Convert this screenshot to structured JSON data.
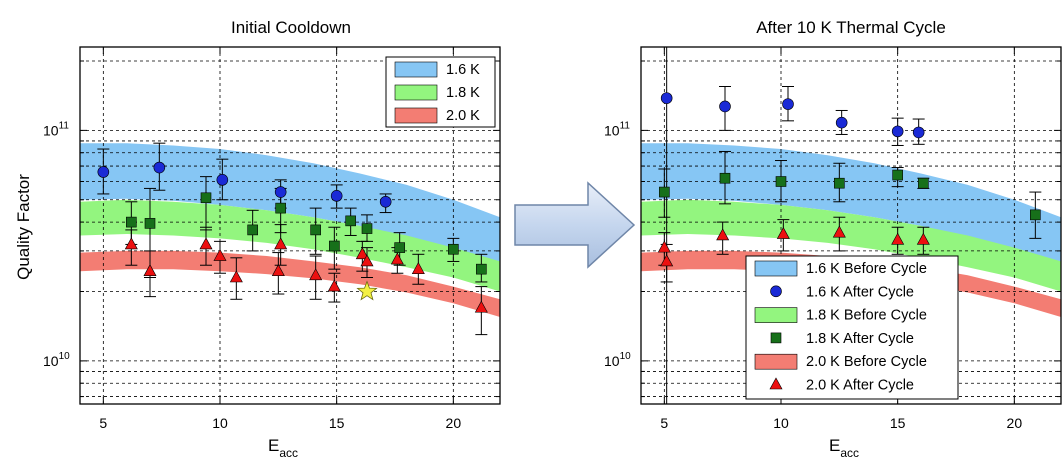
{
  "figure": {
    "ylabel": "Quality Factor",
    "xlabel_main": "E",
    "xlabel_sub": "acc",
    "arrow_color": "#c5d6ee"
  },
  "colors": {
    "band_16": "#86c6f4",
    "band_18": "#93f57f",
    "band_20": "#f37d73",
    "marker_16": "#1a2ad6",
    "marker_18": "#17701a",
    "marker_20": "#ec1010",
    "star": "#f4f142"
  },
  "chart_data": [
    {
      "type": "scatter",
      "title": "Initial Cooldown",
      "xlabel": "Eacc",
      "ylabel": "Quality Factor",
      "xlim": [
        4,
        22
      ],
      "ylim_log": [
        6500000000.0,
        230000000000.0
      ],
      "yscale": "log",
      "grid": true,
      "x_ticks": [
        5,
        10,
        15,
        20
      ],
      "y_ticks": [
        {
          "value": 10000000000.0,
          "mantissa": "10",
          "exp": "10"
        },
        {
          "value": 100000000000.0,
          "mantissa": "10",
          "exp": "11"
        }
      ],
      "legend_position": "top-right",
      "legend": [
        {
          "label": "1.6 K",
          "kind": "band",
          "color_key": "band_16"
        },
        {
          "label": "1.8 K",
          "kind": "band",
          "color_key": "band_18"
        },
        {
          "label": "2.0 K",
          "kind": "band",
          "color_key": "band_20"
        }
      ],
      "bands": [
        {
          "name": "1.6 K",
          "color_key": "band_16",
          "x": [
            4,
            6,
            8,
            10,
            12,
            14,
            16,
            18,
            20,
            22
          ],
          "upper": [
            88000000000.0,
            88000000000.0,
            86000000000.0,
            83000000000.0,
            78000000000.0,
            72000000000.0,
            65000000000.0,
            58000000000.0,
            50000000000.0,
            42000000000.0
          ],
          "lower": [
            50000000000.0,
            50500000000.0,
            49500000000.0,
            47500000000.0,
            45000000000.0,
            42000000000.0,
            38500000000.0,
            34500000000.0,
            30500000000.0,
            26000000000.0
          ]
        },
        {
          "name": "1.8 K",
          "color_key": "band_18",
          "x": [
            4,
            6,
            8,
            10,
            12,
            14,
            16,
            18,
            20,
            22
          ],
          "upper": [
            49000000000.0,
            50000000000.0,
            49000000000.0,
            47500000000.0,
            45000000000.0,
            42000000000.0,
            38500000000.0,
            35000000000.0,
            31000000000.0,
            27000000000.0
          ],
          "lower": [
            35000000000.0,
            35500000000.0,
            35000000000.0,
            34000000000.0,
            32500000000.0,
            30500000000.0,
            28000000000.0,
            25500000000.0,
            23000000000.0,
            20000000000.0
          ]
        },
        {
          "name": "2.0 K",
          "color_key": "band_20",
          "x": [
            4,
            6,
            8,
            10,
            12,
            14,
            16,
            18,
            20,
            22
          ],
          "upper": [
            29500000000.0,
            30000000000.0,
            30000000000.0,
            29500000000.0,
            28500000000.0,
            27000000000.0,
            25500000000.0,
            23500000000.0,
            21000000000.0,
            18500000000.0
          ],
          "lower": [
            24500000000.0,
            25000000000.0,
            25000000000.0,
            24500000000.0,
            23800000000.0,
            22800000000.0,
            21500000000.0,
            19800000000.0,
            17800000000.0,
            15500000000.0
          ]
        }
      ],
      "series": [
        {
          "name": "1.6 K",
          "marker": "circle",
          "color_key": "marker_16",
          "points": [
            {
              "x": 5.0,
              "y": 66000000000.0,
              "lo": 53000000000.0,
              "hi": 83000000000.0
            },
            {
              "x": 7.4,
              "y": 69000000000.0,
              "lo": 55000000000.0,
              "hi": 88000000000.0
            },
            {
              "x": 10.1,
              "y": 61000000000.0,
              "lo": 50000000000.0,
              "hi": 75000000000.0
            },
            {
              "x": 12.6,
              "y": 54000000000.0,
              "lo": 46000000000.0,
              "hi": 61000000000.0
            },
            {
              "x": 15.0,
              "y": 52000000000.0,
              "lo": 46000000000.0,
              "hi": 58000000000.0
            },
            {
              "x": 17.1,
              "y": 49000000000.0,
              "lo": 44000000000.0,
              "hi": 53000000000.0
            }
          ]
        },
        {
          "name": "1.8 K",
          "marker": "square",
          "color_key": "marker_18",
          "points": [
            {
              "x": 6.2,
              "y": 40000000000.0,
              "lo": 32000000000.0,
              "hi": 49000000000.0
            },
            {
              "x": 7.0,
              "y": 39500000000.0,
              "lo": 23000000000.0,
              "hi": 56000000000.0
            },
            {
              "x": 9.4,
              "y": 51000000000.0,
              "lo": 37000000000.0,
              "hi": 63000000000.0
            },
            {
              "x": 11.4,
              "y": 37000000000.0,
              "lo": 30000000000.0,
              "hi": 45000000000.0
            },
            {
              "x": 12.6,
              "y": 46000000000.0,
              "lo": 36000000000.0,
              "hi": 56000000000.0
            },
            {
              "x": 14.1,
              "y": 37000000000.0,
              "lo": 29000000000.0,
              "hi": 46000000000.0
            },
            {
              "x": 14.9,
              "y": 31500000000.0,
              "lo": 25000000000.0,
              "hi": 38000000000.0
            },
            {
              "x": 15.6,
              "y": 40500000000.0,
              "lo": 35000000000.0,
              "hi": 46000000000.0
            },
            {
              "x": 16.3,
              "y": 37500000000.0,
              "lo": 33000000000.0,
              "hi": 43000000000.0
            },
            {
              "x": 17.7,
              "y": 31000000000.0,
              "lo": 26000000000.0,
              "hi": 36000000000.0
            },
            {
              "x": 20.0,
              "y": 30500000000.0,
              "lo": 27000000000.0,
              "hi": 34000000000.0
            },
            {
              "x": 21.2,
              "y": 25000000000.0,
              "lo": 22000000000.0,
              "hi": 29000000000.0
            }
          ]
        },
        {
          "name": "2.0 K",
          "marker": "triangle",
          "color_key": "marker_20",
          "points": [
            {
              "x": 6.2,
              "y": 32000000000.0,
              "lo": 26000000000.0,
              "hi": 37000000000.0
            },
            {
              "x": 7.0,
              "y": 24500000000.0,
              "lo": 19000000000.0,
              "hi": 30000000000.0
            },
            {
              "x": 9.4,
              "y": 32000000000.0,
              "lo": 26000000000.0,
              "hi": 38000000000.0
            },
            {
              "x": 10.0,
              "y": 28500000000.0,
              "lo": 24000000000.0,
              "hi": 33000000000.0
            },
            {
              "x": 10.7,
              "y": 23000000000.0,
              "lo": 18500000000.0,
              "hi": 28000000000.0
            },
            {
              "x": 12.5,
              "y": 24500000000.0,
              "lo": 19500000000.0,
              "hi": 29500000000.0
            },
            {
              "x": 12.6,
              "y": 32000000000.0,
              "lo": 26000000000.0,
              "hi": 39000000000.0
            },
            {
              "x": 14.1,
              "y": 23500000000.0,
              "lo": 18500000000.0,
              "hi": 28500000000.0
            },
            {
              "x": 14.9,
              "y": 21000000000.0,
              "lo": 18000000000.0,
              "hi": 24000000000.0
            },
            {
              "x": 16.1,
              "y": 29000000000.0,
              "lo": 24500000000.0,
              "hi": 33000000000.0
            },
            {
              "x": 16.3,
              "y": 27000000000.0,
              "lo": 23000000000.0,
              "hi": 31000000000.0
            },
            {
              "x": 17.6,
              "y": 27500000000.0,
              "lo": 24000000000.0,
              "hi": 31000000000.0
            },
            {
              "x": 18.5,
              "y": 25000000000.0,
              "lo": 21500000000.0,
              "hi": 29000000000.0
            },
            {
              "x": 21.2,
              "y": 17000000000.0,
              "lo": 13000000000.0,
              "hi": 21000000000.0
            }
          ]
        }
      ],
      "annotations": [
        {
          "marker": "star",
          "color_key": "star",
          "x": 16.3,
          "y": 20000000000.0
        }
      ]
    },
    {
      "type": "scatter",
      "title": "After 10 K Thermal Cycle",
      "xlabel": "Eacc",
      "ylabel": "Quality Factor",
      "xlim": [
        4,
        22
      ],
      "ylim_log": [
        6500000000.0,
        230000000000.0
      ],
      "yscale": "log",
      "grid": true,
      "x_ticks": [
        5,
        10,
        15,
        20
      ],
      "y_ticks": [
        {
          "value": 10000000000.0,
          "mantissa": "10",
          "exp": "10"
        },
        {
          "value": 100000000000.0,
          "mantissa": "10",
          "exp": "11"
        }
      ],
      "legend_position": "bottom-right",
      "legend": [
        {
          "label": "1.6 K Before Cycle",
          "kind": "band",
          "color_key": "band_16"
        },
        {
          "label": "1.6 K After Cycle",
          "kind": "circle",
          "color_key": "marker_16"
        },
        {
          "label": "1.8 K Before Cycle",
          "kind": "band",
          "color_key": "band_18"
        },
        {
          "label": "1.8 K After Cycle",
          "kind": "square",
          "color_key": "marker_18"
        },
        {
          "label": "2.0 K Before Cycle",
          "kind": "band",
          "color_key": "band_20"
        },
        {
          "label": "2.0 K After Cycle",
          "kind": "triangle",
          "color_key": "marker_20"
        }
      ],
      "bands": [
        {
          "name": "1.6 K",
          "color_key": "band_16",
          "x": [
            4,
            6,
            8,
            10,
            12,
            14,
            16,
            18,
            20,
            22
          ],
          "upper": [
            88000000000.0,
            88000000000.0,
            86000000000.0,
            83000000000.0,
            78000000000.0,
            72000000000.0,
            65000000000.0,
            58000000000.0,
            50000000000.0,
            42000000000.0
          ],
          "lower": [
            50000000000.0,
            50500000000.0,
            49500000000.0,
            47500000000.0,
            45000000000.0,
            42000000000.0,
            38500000000.0,
            34500000000.0,
            30500000000.0,
            26000000000.0
          ]
        },
        {
          "name": "1.8 K",
          "color_key": "band_18",
          "x": [
            4,
            6,
            8,
            10,
            12,
            14,
            16,
            18,
            20,
            22
          ],
          "upper": [
            49000000000.0,
            50000000000.0,
            49000000000.0,
            47500000000.0,
            45000000000.0,
            42000000000.0,
            38500000000.0,
            35000000000.0,
            31000000000.0,
            27000000000.0
          ],
          "lower": [
            35000000000.0,
            35500000000.0,
            35000000000.0,
            34000000000.0,
            32500000000.0,
            30500000000.0,
            28000000000.0,
            25500000000.0,
            23000000000.0,
            20000000000.0
          ]
        },
        {
          "name": "2.0 K",
          "color_key": "band_20",
          "x": [
            4,
            6,
            8,
            10,
            12,
            14,
            16,
            18,
            20,
            22
          ],
          "upper": [
            29500000000.0,
            30000000000.0,
            30000000000.0,
            29500000000.0,
            28500000000.0,
            27000000000.0,
            25500000000.0,
            23500000000.0,
            21000000000.0,
            18500000000.0
          ],
          "lower": [
            24500000000.0,
            25000000000.0,
            25000000000.0,
            24500000000.0,
            23800000000.0,
            22800000000.0,
            21500000000.0,
            19800000000.0,
            17800000000.0,
            15500000000.0
          ]
        }
      ],
      "series": [
        {
          "name": "1.6 K After Cycle",
          "marker": "circle",
          "color_key": "marker_16",
          "points": [
            {
              "x": 5.1,
              "y": 138000000000.0,
              "lo": 6500000000.0,
              "hi": 230000000000.0
            },
            {
              "x": 7.6,
              "y": 127000000000.0,
              "lo": 100000000000.0,
              "hi": 155000000000.0
            },
            {
              "x": 10.3,
              "y": 130000000000.0,
              "lo": 110000000000.0,
              "hi": 155000000000.0
            },
            {
              "x": 12.6,
              "y": 108000000000.0,
              "lo": 96000000000.0,
              "hi": 122000000000.0
            },
            {
              "x": 15.0,
              "y": 99000000000.0,
              "lo": 86000000000.0,
              "hi": 113000000000.0
            },
            {
              "x": 15.9,
              "y": 98000000000.0,
              "lo": 87000000000.0,
              "hi": 112000000000.0
            }
          ]
        },
        {
          "name": "1.8 K After Cycle",
          "marker": "square",
          "color_key": "marker_18",
          "points": [
            {
              "x": 5.0,
              "y": 54000000000.0,
              "lo": 42000000000.0,
              "hi": 68000000000.0
            },
            {
              "x": 7.6,
              "y": 62000000000.0,
              "lo": 48000000000.0,
              "hi": 81000000000.0
            },
            {
              "x": 10.0,
              "y": 60000000000.0,
              "lo": 49000000000.0,
              "hi": 74000000000.0
            },
            {
              "x": 12.5,
              "y": 59000000000.0,
              "lo": 49000000000.0,
              "hi": 72000000000.0
            },
            {
              "x": 15.0,
              "y": 64000000000.0,
              "lo": 57000000000.0,
              "hi": 69000000000.0
            },
            {
              "x": 16.1,
              "y": 59000000000.0,
              "lo": 56000000000.0,
              "hi": 62000000000.0
            },
            {
              "x": 20.9,
              "y": 43000000000.0,
              "lo": 34000000000.0,
              "hi": 54000000000.0
            }
          ]
        },
        {
          "name": "2.0 K After Cycle",
          "marker": "triangle",
          "color_key": "marker_20",
          "points": [
            {
              "x": 5.0,
              "y": 31000000000.0,
              "lo": 26000000000.0,
              "hi": 36000000000.0
            },
            {
              "x": 5.1,
              "y": 27000000000.0,
              "lo": 22000000000.0,
              "hi": 32000000000.0
            },
            {
              "x": 7.5,
              "y": 35000000000.0,
              "lo": 29000000000.0,
              "hi": 40000000000.0
            },
            {
              "x": 10.1,
              "y": 35500000000.0,
              "lo": 30000000000.0,
              "hi": 41000000000.0
            },
            {
              "x": 12.5,
              "y": 36000000000.0,
              "lo": 30000000000.0,
              "hi": 42000000000.0
            },
            {
              "x": 15.0,
              "y": 33500000000.0,
              "lo": 29000000000.0,
              "hi": 38000000000.0
            },
            {
              "x": 16.1,
              "y": 33500000000.0,
              "lo": 29000000000.0,
              "hi": 38000000000.0
            }
          ]
        }
      ],
      "annotations": []
    }
  ]
}
